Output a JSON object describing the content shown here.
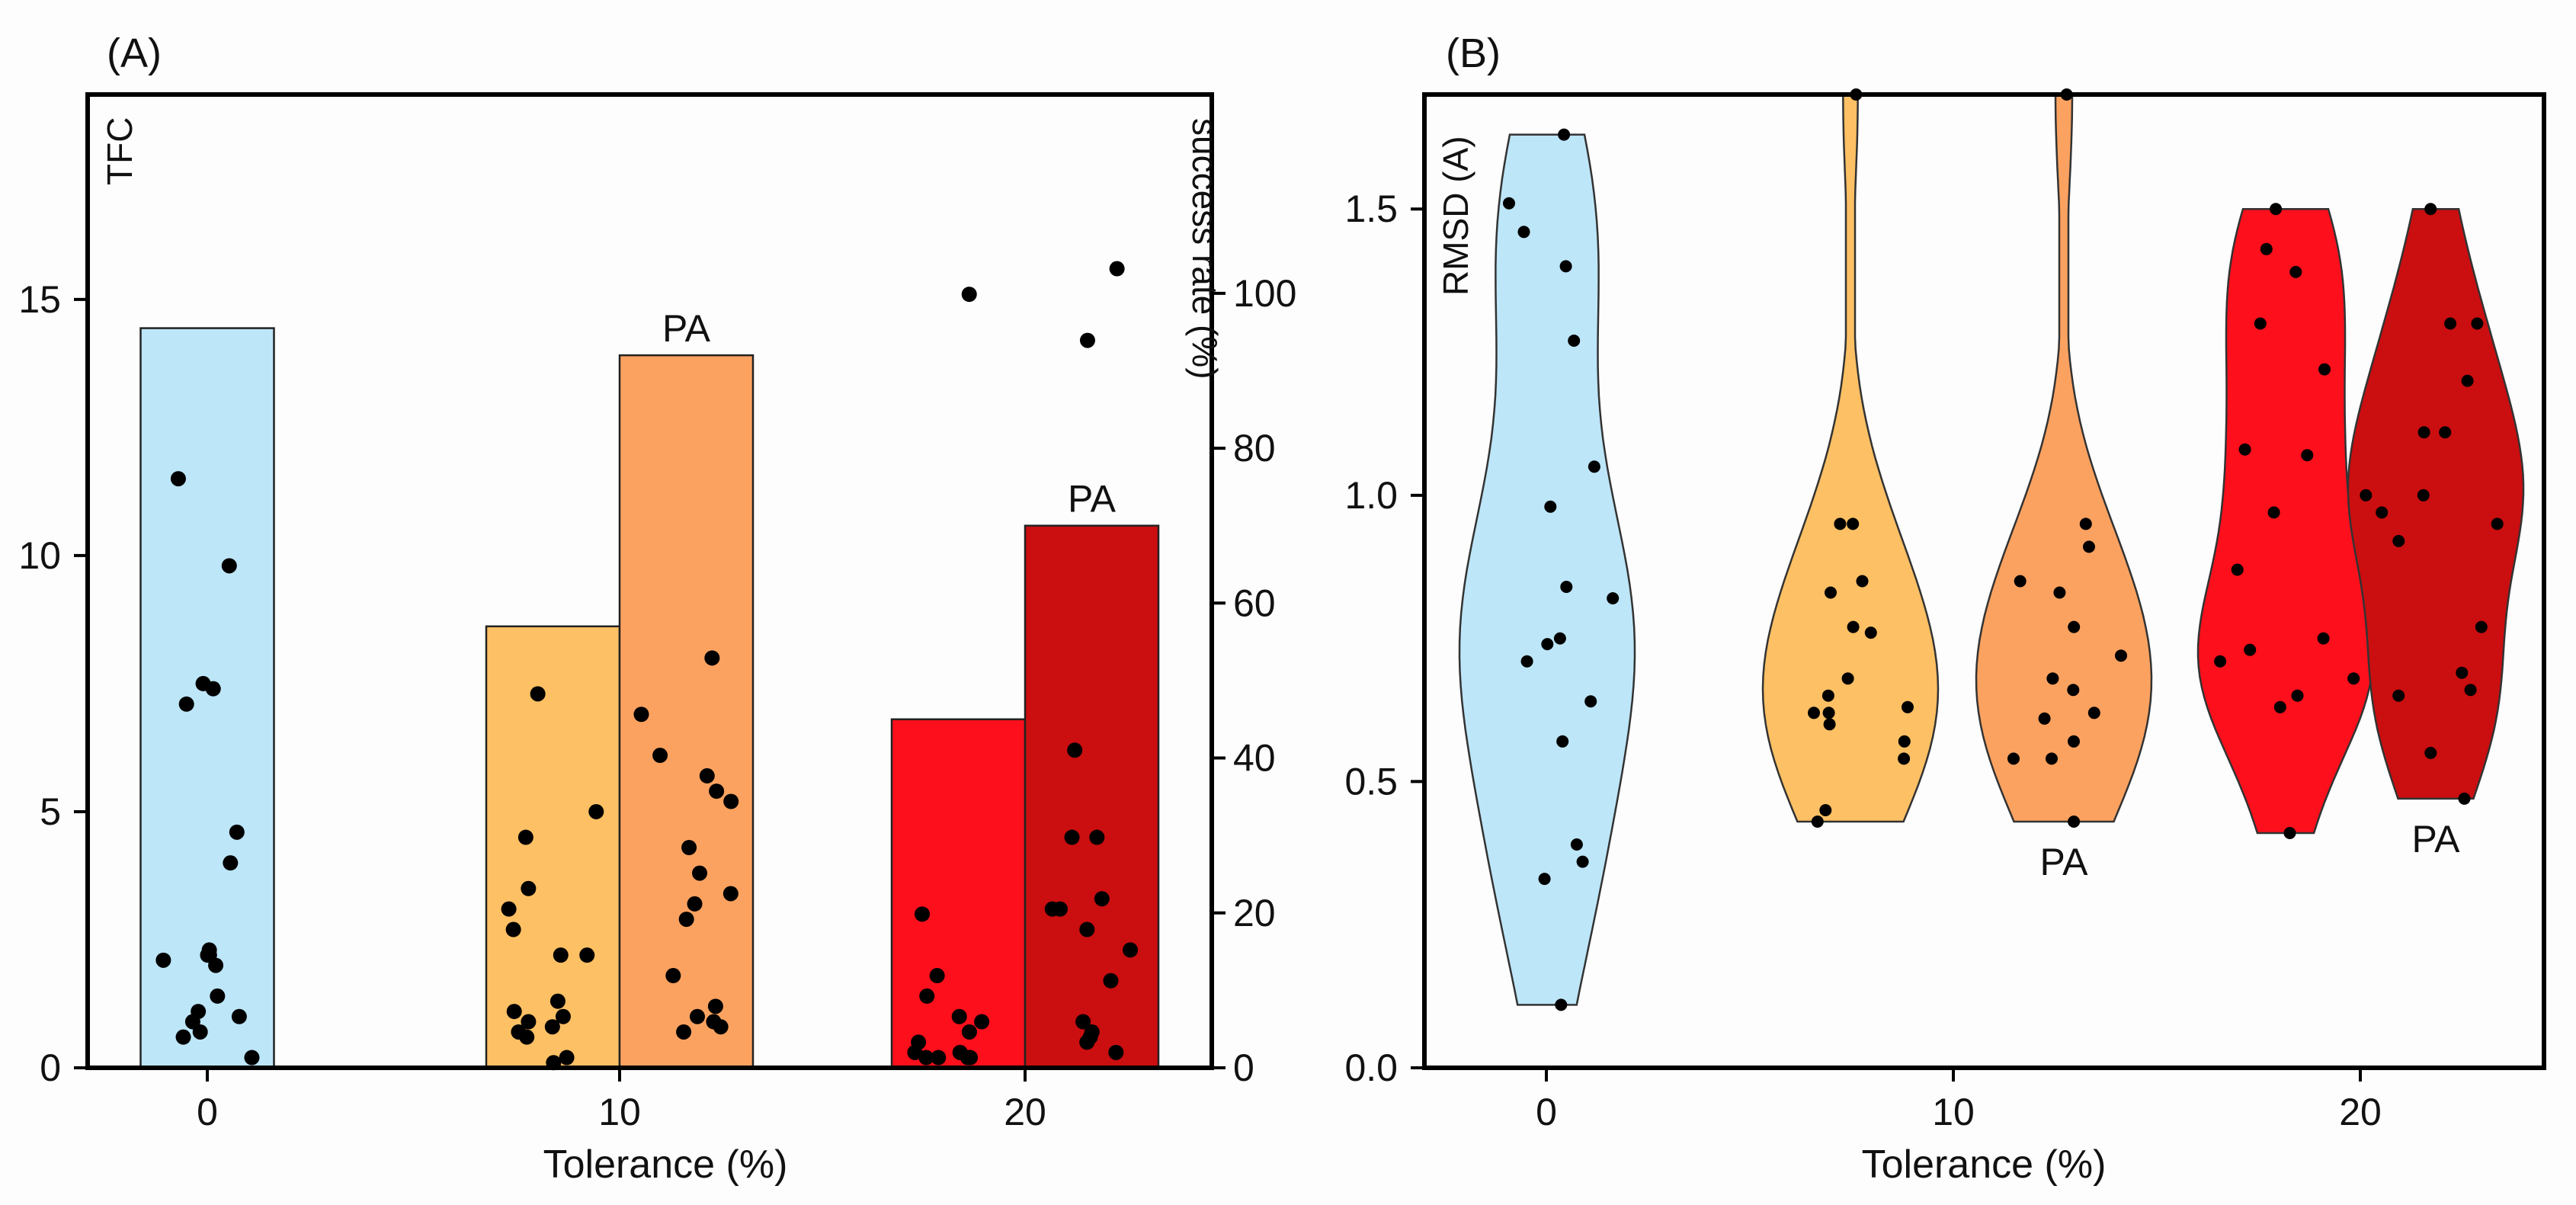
{
  "chart_data": [
    {
      "type": "bar",
      "panel_label": "(A)",
      "xlabel": "Tolerance (%)",
      "ylabel_left": "TFC",
      "ylabel_right": "success rate (%)",
      "x_ticks": [
        "0",
        "10",
        "20"
      ],
      "y_left_ticks": [
        "0",
        "5",
        "10",
        "15"
      ],
      "y_left_lim": [
        0,
        19
      ],
      "y_right_ticks": [
        "0",
        "20",
        "40",
        "60",
        "80",
        "100"
      ],
      "y_right_lim": [
        0,
        125.67
      ],
      "groups": [
        {
          "name": "0",
          "color": "#bde6f8",
          "bars": [
            {
              "method": "default",
              "tolerance": 0,
              "success_rate": 95.5,
              "label": "",
              "tfc_points": [
                11.5,
                9.8,
                7.4,
                7.5,
                7.1,
                4.6,
                4.0,
                2.2,
                2.2,
                2.3,
                2.1,
                2.0,
                1.4,
                1.1,
                1.0,
                0.9,
                0.7,
                0.6,
                0.2
              ]
            }
          ]
        },
        {
          "name": "10",
          "color": "#fdc064",
          "bars": [
            {
              "method": "default",
              "tolerance": 10,
              "success_rate": 57.0,
              "label": "",
              "tfc_points": [
                7.3,
                5.0,
                4.5,
                3.5,
                3.1,
                2.7,
                2.2,
                2.2,
                1.3,
                1.1,
                1.0,
                0.9,
                0.8,
                0.7,
                0.6,
                0.2,
                0.1
              ]
            },
            {
              "method": "PA",
              "tolerance": 10,
              "success_rate": 92.0,
              "label": "PA",
              "color": "#fca260",
              "tfc_points": [
                8.0,
                6.9,
                6.1,
                5.7,
                5.4,
                5.2,
                4.3,
                3.8,
                3.4,
                3.2,
                2.9,
                1.8,
                1.2,
                1.0,
                0.9,
                0.8,
                0.7
              ]
            }
          ]
        },
        {
          "name": "20",
          "color": "#fd0f1c",
          "bars": [
            {
              "method": "default",
              "tolerance": 20,
              "success_rate": 45.0,
              "label": "",
              "tfc_points": [
                15.1,
                3.0,
                1.8,
                1.4,
                1.0,
                0.9,
                0.7,
                0.5,
                0.3,
                0.3,
                0.2,
                0.2,
                0.2,
                0.2
              ]
            },
            {
              "method": "PA",
              "tolerance": 20,
              "success_rate": 70.0,
              "label": "PA",
              "color": "#cb0e10",
              "tfc_points": [
                15.6,
                14.2,
                6.2,
                4.5,
                4.5,
                3.3,
                3.1,
                3.1,
                2.7,
                2.3,
                1.7,
                0.9,
                0.7,
                0.6,
                0.5,
                0.3
              ]
            }
          ]
        }
      ]
    },
    {
      "type": "violin",
      "panel_label": "(B)",
      "xlabel": "Tolerance (%)",
      "ylabel": "RMSD (A)",
      "x_ticks": [
        "0",
        "10",
        "20"
      ],
      "y_ticks": [
        "0.0",
        "0.5",
        "1.0",
        "1.5"
      ],
      "ylim": [
        0,
        1.7
      ],
      "violins": [
        {
          "group": "0",
          "method": "default",
          "color": "#bde6f8",
          "label": "",
          "points": [
            1.63,
            1.51,
            1.46,
            1.4,
            1.27,
            1.05,
            0.98,
            0.84,
            0.82,
            0.75,
            0.74,
            0.71,
            0.64,
            0.57,
            0.39,
            0.36,
            0.33,
            0.11
          ]
        },
        {
          "group": "10",
          "method": "default",
          "color": "#fdc064",
          "label": "",
          "points": [
            1.7,
            0.95,
            0.95,
            0.85,
            0.83,
            0.77,
            0.76,
            0.68,
            0.65,
            0.63,
            0.62,
            0.62,
            0.6,
            0.57,
            0.54,
            0.45,
            0.43
          ]
        },
        {
          "group": "10",
          "method": "PA",
          "color": "#fca260",
          "label": "PA",
          "points": [
            1.7,
            0.95,
            0.91,
            0.85,
            0.83,
            0.77,
            0.72,
            0.68,
            0.66,
            0.62,
            0.61,
            0.57,
            0.54,
            0.54,
            0.43
          ]
        },
        {
          "group": "20",
          "method": "default",
          "color": "#fd0f1c",
          "label": "",
          "points": [
            1.5,
            1.43,
            1.39,
            1.3,
            1.22,
            1.08,
            1.07,
            0.97,
            0.87,
            0.75,
            0.73,
            0.71,
            0.68,
            0.65,
            0.63,
            0.41
          ]
        },
        {
          "group": "20",
          "method": "PA",
          "color": "#cb0e10",
          "label": "PA",
          "points": [
            1.5,
            1.3,
            1.3,
            1.2,
            1.11,
            1.11,
            1.0,
            1.0,
            0.97,
            0.95,
            0.92,
            0.77,
            0.69,
            0.66,
            0.65,
            0.55,
            0.47
          ]
        }
      ]
    }
  ]
}
